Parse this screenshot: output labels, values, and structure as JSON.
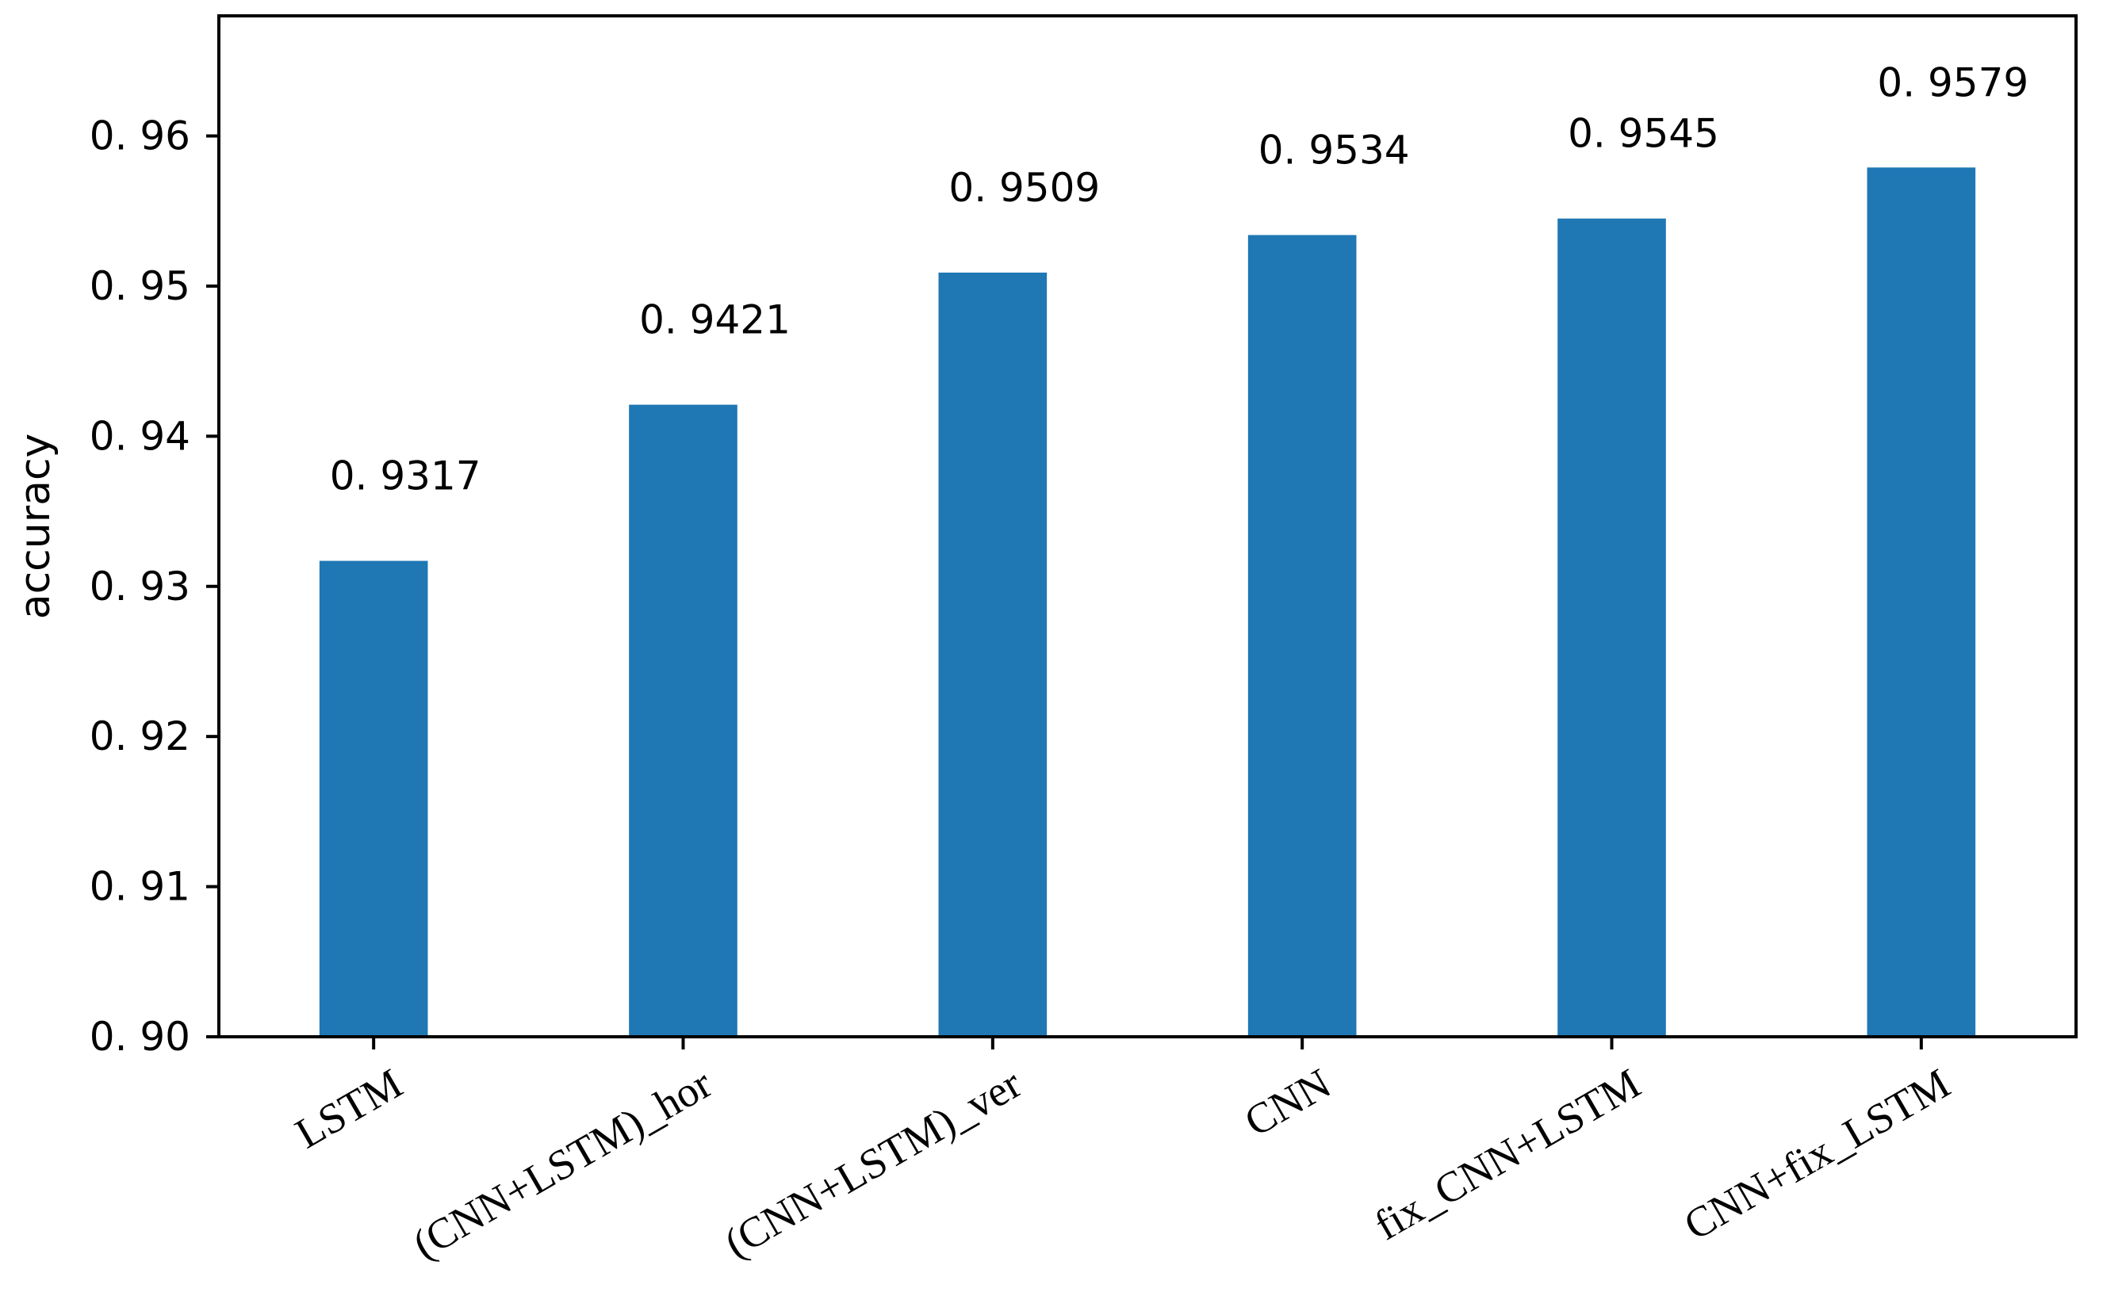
{
  "chart_data": {
    "type": "bar",
    "title": "",
    "xlabel": "",
    "ylabel": "accuracy",
    "categories": [
      "LSTM",
      "(CNN+LSTM)_hor",
      "(CNN+LSTM)_ver",
      "CNN",
      "fix_CNN+LSTM",
      "CNN+fix_LSTM"
    ],
    "values": [
      0.9317,
      0.9421,
      0.9509,
      0.9534,
      0.9545,
      0.9579
    ],
    "value_labels": [
      "0. 9317",
      "0. 9421",
      "0. 9509",
      "0. 9534",
      "0. 9545",
      "0. 9579"
    ],
    "ylim": [
      0.9,
      0.968
    ],
    "yticks": [
      0.9,
      0.91,
      0.92,
      0.93,
      0.94,
      0.95,
      0.96
    ],
    "ytick_labels": [
      "0. 90",
      "0. 91",
      "0. 92",
      "0. 93",
      "0. 94",
      "0. 95",
      "0. 96"
    ],
    "grid": false,
    "bar_color": "#1f77b4"
  }
}
